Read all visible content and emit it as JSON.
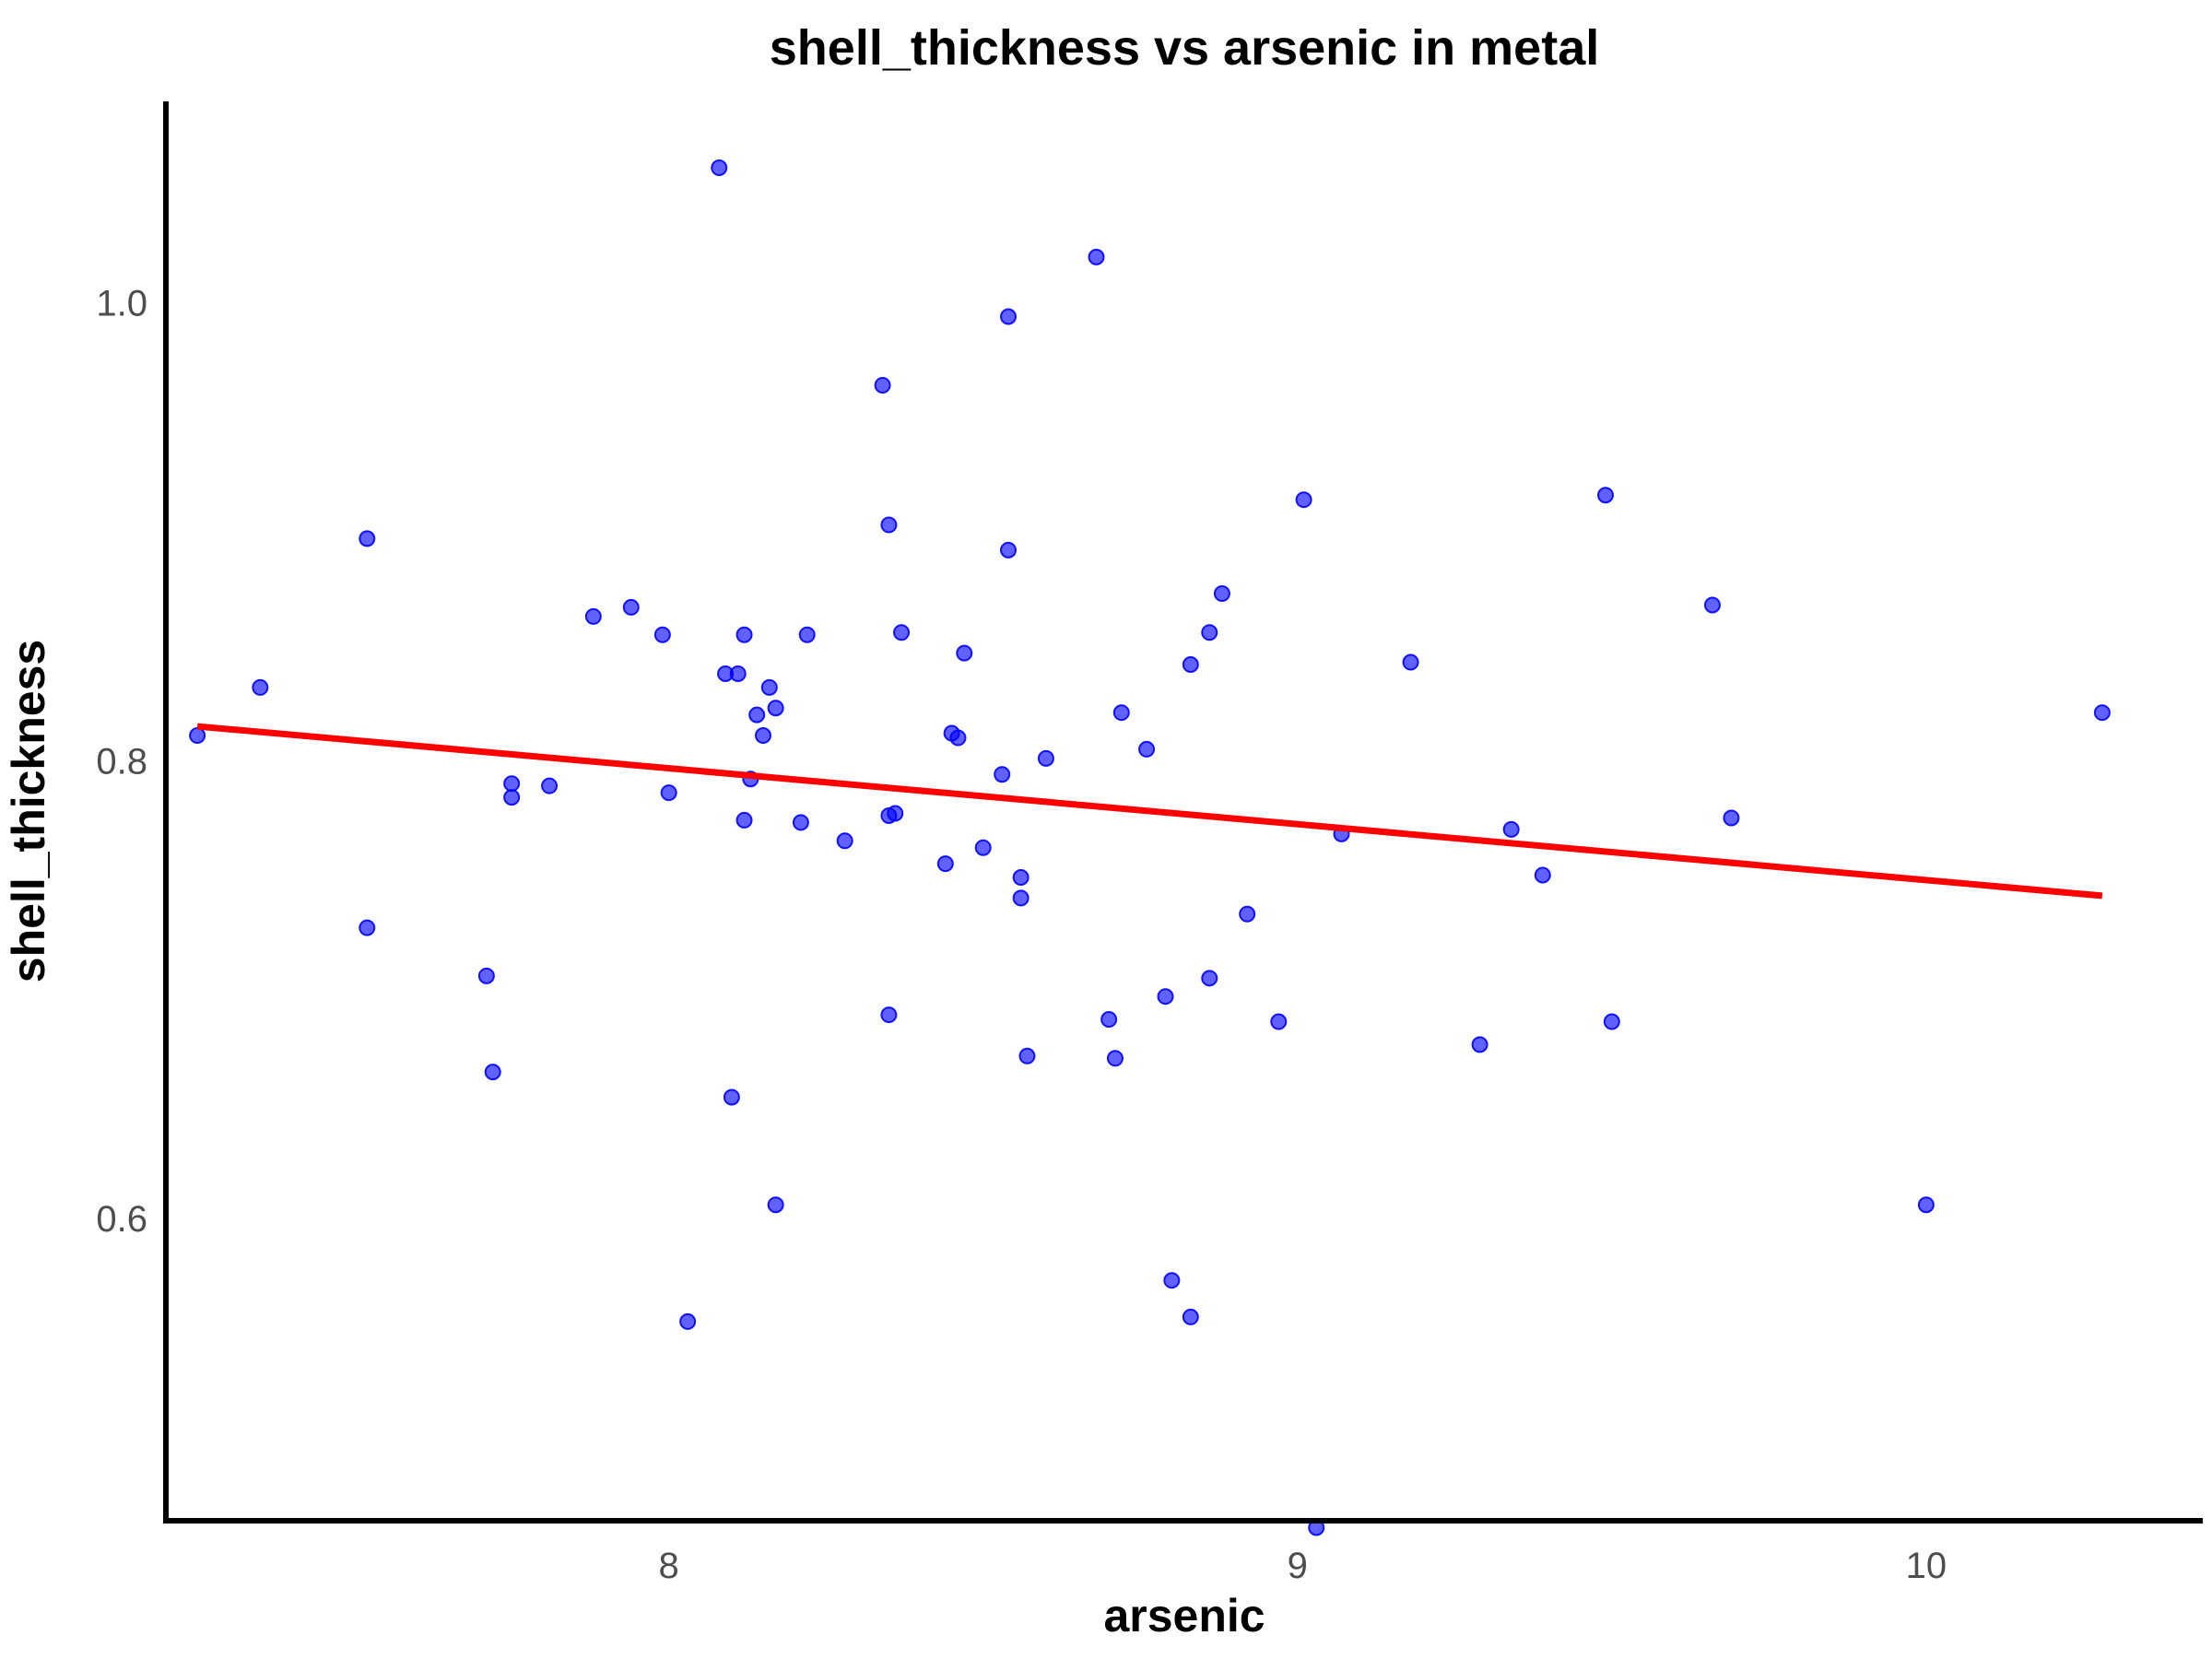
{
  "chart_data": {
    "type": "scatter",
    "title": "shell_thickness vs arsenic in metal",
    "xlabel": "arsenic",
    "ylabel": "shell_thickness",
    "xlim": [
      7.2,
      10.44
    ],
    "ylim": [
      0.468,
      1.088
    ],
    "x_ticks": [
      {
        "value": 8,
        "label": "8"
      },
      {
        "value": 9,
        "label": "9"
      },
      {
        "value": 10,
        "label": "10"
      }
    ],
    "y_ticks": [
      {
        "value": 0.6,
        "label": "0.6"
      },
      {
        "value": 0.8,
        "label": "0.8"
      },
      {
        "value": 1.0,
        "label": "1.0"
      }
    ],
    "grid": false,
    "legend": "none",
    "colors": {
      "points": "#0000ff",
      "trend": "#ff0000",
      "axis": "#000000"
    },
    "points": [
      [
        7.25,
        0.811
      ],
      [
        7.35,
        0.832
      ],
      [
        7.52,
        0.897
      ],
      [
        7.52,
        0.727
      ],
      [
        7.71,
        0.706
      ],
      [
        7.72,
        0.664
      ],
      [
        7.75,
        0.79
      ],
      [
        7.75,
        0.784
      ],
      [
        7.81,
        0.789
      ],
      [
        7.88,
        0.863
      ],
      [
        7.94,
        0.867
      ],
      [
        7.99,
        0.855
      ],
      [
        8.0,
        0.786
      ],
      [
        8.03,
        0.555
      ],
      [
        8.08,
        1.059
      ],
      [
        8.09,
        0.838
      ],
      [
        8.1,
        0.653
      ],
      [
        8.11,
        0.838
      ],
      [
        8.12,
        0.855
      ],
      [
        8.12,
        0.774
      ],
      [
        8.13,
        0.792
      ],
      [
        8.14,
        0.82
      ],
      [
        8.15,
        0.811
      ],
      [
        8.16,
        0.832
      ],
      [
        8.17,
        0.606
      ],
      [
        8.17,
        0.823
      ],
      [
        8.21,
        0.773
      ],
      [
        8.22,
        0.855
      ],
      [
        8.28,
        0.765
      ],
      [
        8.34,
        0.964
      ],
      [
        8.35,
        0.903
      ],
      [
        8.35,
        0.776
      ],
      [
        8.35,
        0.689
      ],
      [
        8.36,
        0.777
      ],
      [
        8.37,
        0.856
      ],
      [
        8.44,
        0.755
      ],
      [
        8.45,
        0.812
      ],
      [
        8.46,
        0.81
      ],
      [
        8.47,
        0.847
      ],
      [
        8.5,
        0.762
      ],
      [
        8.53,
        0.794
      ],
      [
        8.54,
        0.994
      ],
      [
        8.54,
        0.892
      ],
      [
        8.56,
        0.749
      ],
      [
        8.56,
        0.74
      ],
      [
        8.57,
        0.671
      ],
      [
        8.6,
        0.801
      ],
      [
        8.68,
        1.02
      ],
      [
        8.7,
        0.687
      ],
      [
        8.71,
        0.67
      ],
      [
        8.72,
        0.821
      ],
      [
        8.76,
        0.805
      ],
      [
        8.79,
        0.697
      ],
      [
        8.8,
        0.573
      ],
      [
        8.83,
        0.842
      ],
      [
        8.83,
        0.557
      ],
      [
        8.86,
        0.856
      ],
      [
        8.86,
        0.705
      ],
      [
        8.88,
        0.873
      ],
      [
        8.92,
        0.733
      ],
      [
        8.97,
        0.686
      ],
      [
        9.01,
        0.914
      ],
      [
        9.03,
        0.465
      ],
      [
        9.07,
        0.768
      ],
      [
        9.18,
        0.843
      ],
      [
        9.29,
        0.676
      ],
      [
        9.34,
        0.77
      ],
      [
        9.39,
        0.75
      ],
      [
        9.49,
        0.916
      ],
      [
        9.5,
        0.686
      ],
      [
        9.66,
        0.868
      ],
      [
        9.69,
        0.775
      ],
      [
        10.0,
        0.606
      ],
      [
        10.28,
        0.821
      ]
    ],
    "trend_line": {
      "x": [
        7.25,
        10.28
      ],
      "y": [
        0.815,
        0.741
      ]
    }
  }
}
